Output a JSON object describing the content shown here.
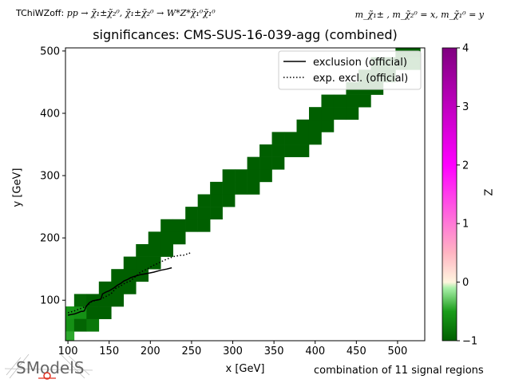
{
  "header": {
    "topo_label": "TChiWZoff:",
    "process": "pp → χ̃₁±χ̃₂⁰, χ̃₁±χ̃₂⁰ → W*Z*χ̃₁⁰χ̃₁⁰",
    "mass_spec": "m_χ̃₁± , m_χ̃₂⁰ = x, m_χ̃₁⁰ = y"
  },
  "footer": {
    "note": "combination of 11 signal regions",
    "logo_text": "SModelS"
  },
  "colors": {
    "exclusion_line": "#000000",
    "colormap": [
      "#005f00",
      "#1a9c1a",
      "#aaf0aa",
      "#fff5df",
      "#ffb5c2",
      "#ff00ff",
      "#7f007f"
    ]
  },
  "chart_data": {
    "type": "heatmap",
    "title": "significances: CMS-SUS-16-039-agg (combined)",
    "xlabel": "x [GeV]",
    "ylabel": "y [GeV]",
    "xlim": [
      97,
      533
    ],
    "ylim": [
      35,
      505
    ],
    "xticks": [
      100,
      150,
      200,
      250,
      300,
      350,
      400,
      450,
      500
    ],
    "yticks": [
      100,
      200,
      300,
      400,
      500
    ],
    "grid": false,
    "legend": {
      "placement": "top-right",
      "entries": [
        {
          "label": "exclusion (official)",
          "style": "solid"
        },
        {
          "label": "exp. excl. (official)",
          "style": "dotted"
        }
      ]
    },
    "colorbar": {
      "label": "Z",
      "range": [
        -1,
        4
      ],
      "ticks": [
        -1,
        0,
        1,
        2,
        3,
        4
      ]
    },
    "cell_size": {
      "dx": 15,
      "dy": 20
    },
    "cells": [
      {
        "x": 100,
        "y": 80,
        "z": -0.55
      },
      {
        "x": 100,
        "y": 60,
        "z": -0.6
      },
      {
        "x": 100,
        "y": 40,
        "z": -0.45
      },
      {
        "x": 115,
        "y": 80,
        "z": -0.6
      },
      {
        "x": 115,
        "y": 60,
        "z": -0.95
      },
      {
        "x": 115,
        "y": 100,
        "z": -0.95
      },
      {
        "x": 130,
        "y": 60,
        "z": -0.8
      },
      {
        "x": 130,
        "y": 80,
        "z": -1
      },
      {
        "x": 130,
        "y": 100,
        "z": -1
      },
      {
        "x": 145,
        "y": 80,
        "z": -1
      },
      {
        "x": 145,
        "y": 100,
        "z": -1
      },
      {
        "x": 145,
        "y": 120,
        "z": -1
      },
      {
        "x": 160,
        "y": 100,
        "z": -1
      },
      {
        "x": 160,
        "y": 120,
        "z": -1
      },
      {
        "x": 160,
        "y": 140,
        "z": -1
      },
      {
        "x": 175,
        "y": 120,
        "z": -1
      },
      {
        "x": 175,
        "y": 140,
        "z": -1
      },
      {
        "x": 175,
        "y": 160,
        "z": -1
      },
      {
        "x": 190,
        "y": 140,
        "z": -1
      },
      {
        "x": 190,
        "y": 160,
        "z": -1
      },
      {
        "x": 190,
        "y": 180,
        "z": -1
      },
      {
        "x": 205,
        "y": 160,
        "z": -1
      },
      {
        "x": 205,
        "y": 180,
        "z": -1
      },
      {
        "x": 205,
        "y": 200,
        "z": -1
      },
      {
        "x": 220,
        "y": 180,
        "z": -1
      },
      {
        "x": 220,
        "y": 200,
        "z": -1
      },
      {
        "x": 220,
        "y": 220,
        "z": -1
      },
      {
        "x": 235,
        "y": 200,
        "z": -1
      },
      {
        "x": 235,
        "y": 220,
        "z": -1
      },
      {
        "x": 250,
        "y": 220,
        "z": -1
      },
      {
        "x": 250,
        "y": 240,
        "z": -1
      },
      {
        "x": 265,
        "y": 220,
        "z": -1
      },
      {
        "x": 265,
        "y": 240,
        "z": -1
      },
      {
        "x": 265,
        "y": 260,
        "z": -1
      },
      {
        "x": 280,
        "y": 240,
        "z": -1
      },
      {
        "x": 280,
        "y": 260,
        "z": -1
      },
      {
        "x": 280,
        "y": 280,
        "z": -1
      },
      {
        "x": 295,
        "y": 260,
        "z": -1
      },
      {
        "x": 295,
        "y": 280,
        "z": -1
      },
      {
        "x": 295,
        "y": 300,
        "z": -1
      },
      {
        "x": 310,
        "y": 280,
        "z": -1
      },
      {
        "x": 310,
        "y": 300,
        "z": -1
      },
      {
        "x": 325,
        "y": 280,
        "z": -1
      },
      {
        "x": 325,
        "y": 300,
        "z": -1
      },
      {
        "x": 325,
        "y": 320,
        "z": -1
      },
      {
        "x": 340,
        "y": 300,
        "z": -1
      },
      {
        "x": 340,
        "y": 320,
        "z": -1
      },
      {
        "x": 340,
        "y": 340,
        "z": -1
      },
      {
        "x": 355,
        "y": 320,
        "z": -1
      },
      {
        "x": 355,
        "y": 340,
        "z": -1
      },
      {
        "x": 355,
        "y": 360,
        "z": -1
      },
      {
        "x": 370,
        "y": 340,
        "z": -1
      },
      {
        "x": 370,
        "y": 360,
        "z": -1
      },
      {
        "x": 385,
        "y": 340,
        "z": -1
      },
      {
        "x": 385,
        "y": 360,
        "z": -1
      },
      {
        "x": 385,
        "y": 380,
        "z": -1
      },
      {
        "x": 400,
        "y": 360,
        "z": -1
      },
      {
        "x": 400,
        "y": 380,
        "z": -1
      },
      {
        "x": 400,
        "y": 400,
        "z": -1
      },
      {
        "x": 415,
        "y": 380,
        "z": -1
      },
      {
        "x": 415,
        "y": 400,
        "z": -1
      },
      {
        "x": 415,
        "y": 420,
        "z": -1
      },
      {
        "x": 430,
        "y": 400,
        "z": -1
      },
      {
        "x": 430,
        "y": 420,
        "z": -1
      },
      {
        "x": 445,
        "y": 400,
        "z": -1
      },
      {
        "x": 445,
        "y": 420,
        "z": -1
      },
      {
        "x": 445,
        "y": 440,
        "z": -1
      },
      {
        "x": 460,
        "y": 420,
        "z": -1
      },
      {
        "x": 460,
        "y": 440,
        "z": -1
      },
      {
        "x": 460,
        "y": 460,
        "z": -1
      },
      {
        "x": 475,
        "y": 440,
        "z": -1
      },
      {
        "x": 475,
        "y": 460,
        "z": -1
      },
      {
        "x": 475,
        "y": 480,
        "z": -1
      },
      {
        "x": 490,
        "y": 460,
        "z": -1
      },
      {
        "x": 490,
        "y": 480,
        "z": -1
      },
      {
        "x": 505,
        "y": 480,
        "z": -1
      },
      {
        "x": 505,
        "y": 500,
        "z": -1
      },
      {
        "x": 520,
        "y": 480,
        "z": -0.85
      },
      {
        "x": 520,
        "y": 500,
        "z": -1
      }
    ],
    "series": [
      {
        "name": "exclusion (official)",
        "style": "solid",
        "x": [
          100,
          104,
          108,
          112,
          116,
          118,
          120,
          122,
          126,
          130,
          134,
          138,
          140,
          142,
          146,
          150,
          156,
          160,
          164,
          168,
          172,
          176,
          180,
          188,
          196,
          204,
          212,
          220,
          226
        ],
        "y": [
          76,
          77,
          78,
          80,
          82,
          82,
          83,
          90,
          96,
          99,
          100,
          101,
          102,
          110,
          113,
          115,
          120,
          124,
          127,
          131,
          133,
          136,
          138,
          141,
          143,
          145,
          148,
          150,
          152
        ]
      },
      {
        "name": "exp. excl. (official)",
        "style": "dotted",
        "x": [
          100,
          106,
          112,
          118,
          122,
          128,
          134,
          140,
          146,
          152,
          158,
          164,
          170,
          176,
          182,
          188,
          196,
          204,
          212,
          220,
          228,
          236,
          240,
          243,
          246,
          250
        ],
        "y": [
          80,
          82,
          85,
          88,
          90,
          97,
          100,
          102,
          106,
          110,
          119,
          123,
          128,
          131,
          138,
          145,
          150,
          156,
          161,
          166,
          170,
          172,
          172,
          174,
          174,
          178
        ]
      }
    ]
  }
}
